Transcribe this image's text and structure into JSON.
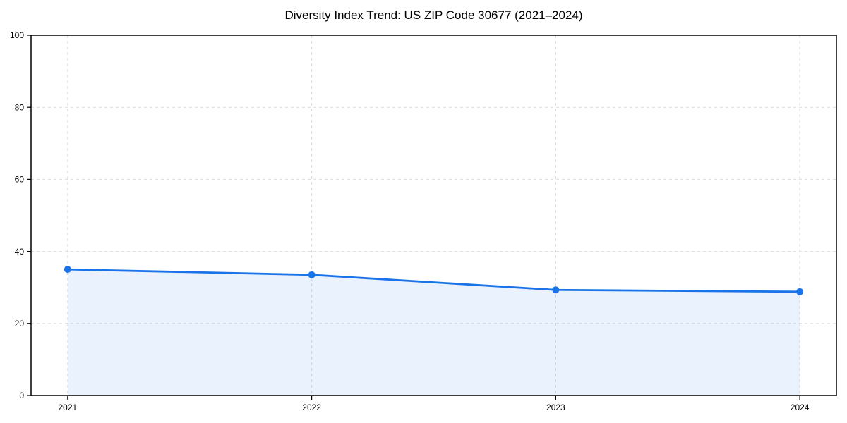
{
  "chart_data": {
    "type": "line",
    "title": "Diversity Index Trend: US ZIP Code 30677 (2021–2024)",
    "categories": [
      "2021",
      "2022",
      "2023",
      "2024"
    ],
    "x": [
      2021,
      2022,
      2023,
      2024
    ],
    "values": [
      35.0,
      33.5,
      29.3,
      28.8
    ],
    "series": [
      {
        "name": "Diversity Index",
        "values": [
          35.0,
          33.5,
          29.3,
          28.8
        ]
      }
    ],
    "xlabel": "",
    "ylabel": "",
    "xlim": [
      2020.85,
      2024.15
    ],
    "ylim": [
      0,
      100
    ],
    "yticks": [
      0,
      20,
      40,
      60,
      80,
      100
    ],
    "xticks": [
      2021,
      2022,
      2023,
      2024
    ],
    "grid": "dashed",
    "legend": "none",
    "area_fill": true,
    "marker": "circle",
    "colors": {
      "line": "#1a73e8",
      "marker": "#1a73e8",
      "area_fill": "#1a73e8",
      "area_fill_opacity": 0.09,
      "grid": "#dcdcdc",
      "axis": "#000000",
      "text": "#000000",
      "background": "#ffffff"
    }
  }
}
